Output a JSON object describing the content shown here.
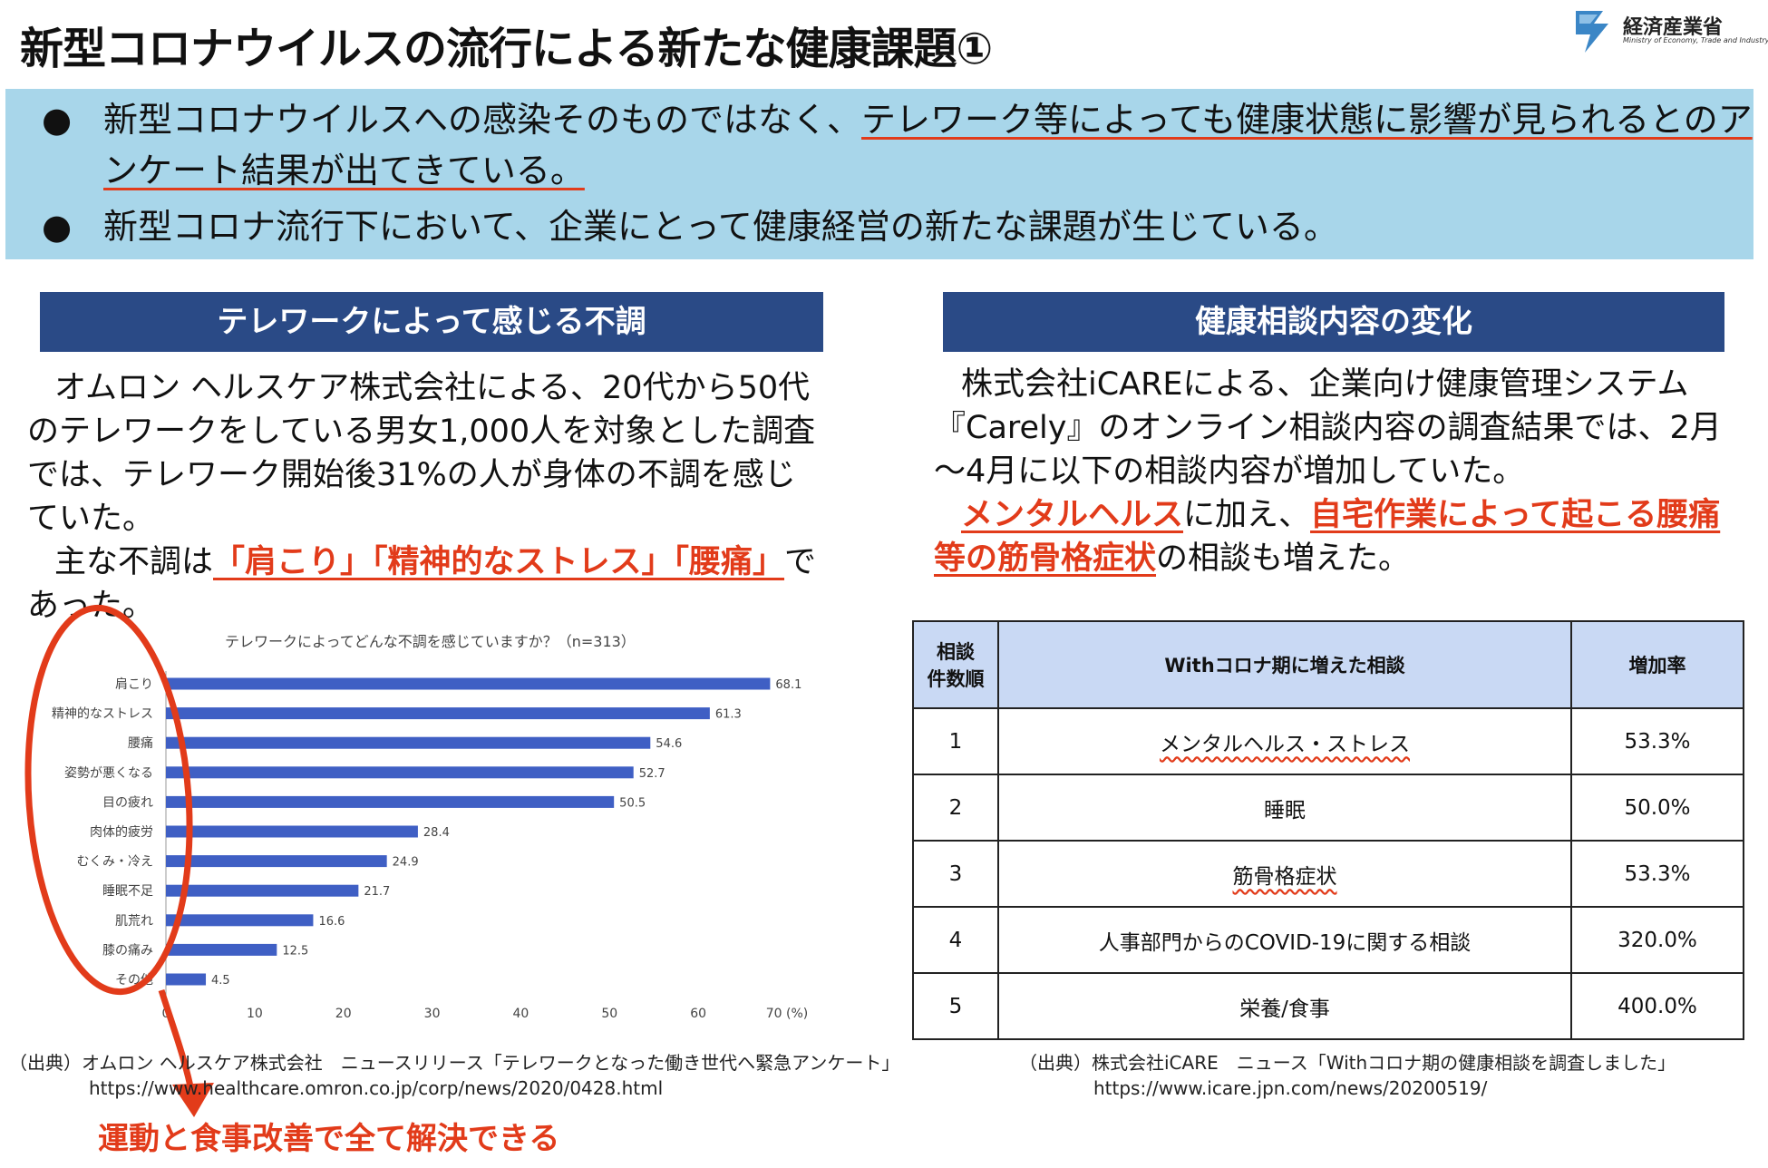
{
  "header": {
    "title": "新型コロナウイルスの流行による新たな健康課題①",
    "logo_text": "経済産業省",
    "logo_sub": "Ministry of Economy, Trade and Industry"
  },
  "banner": {
    "bullet1_line1_a": "新型コロナウイルスへの感染そのものではなく、",
    "bullet1_line1_b": "テレワーク等によっても健康状態に影響が見られるとのア",
    "bullet1_line2": "ンケート結果が出てきている。",
    "bullet2": "新型コロナ流行下において、企業にとって健康経営の新たな課題が生じている。"
  },
  "left": {
    "heading": "テレワークによって感じる不調",
    "para1": "オムロン ヘルスケア株式会社による、20代から50代のテレワークをしている男女1,000人を対象とした調査では、テレワーク開始後31%の人が身体の不調を感じていた。",
    "para2_a": "主な不調は",
    "para2_red": "「肩こり」「精神的なストレス」「腰痛」",
    "para2_b": "であった。",
    "source_line1": "（出典）オムロン ヘルスケア株式会社　ニュースリリース「テレワークとなった働き世代へ緊急アンケート」",
    "source_line2": "https://www.healthcare.omron.co.jp/corp/news/2020/0428.html",
    "annotation": "運動と食事改善で全て解決できる"
  },
  "right": {
    "heading": "健康相談内容の変化",
    "para1": "株式会社iCAREによる、企業向け健康管理システム『Carely』のオンライン相談内容の調査結果では、2月～4月に以下の相談内容が増加していた。",
    "para2_red1": "メンタルヘルス",
    "para2_a": "に加え、",
    "para2_red2": "自宅作業によって起こる腰痛等の筋骨格症状",
    "para2_b": "の相談も増えた。",
    "table": {
      "headers": [
        "相談\n件数順",
        "Withコロナ期に増えた相談",
        "増加率"
      ],
      "rows": [
        {
          "rank": "1",
          "item": "メンタルヘルス・ストレス",
          "rate": "53.3%"
        },
        {
          "rank": "2",
          "item": "睡眠",
          "rate": "50.0%"
        },
        {
          "rank": "3",
          "item": "筋骨格症状",
          "rate": "53.3%"
        },
        {
          "rank": "4",
          "item": "人事部門からのCOVID-19に関する相談",
          "rate": "320.0%"
        },
        {
          "rank": "5",
          "item": "栄養/食事",
          "rate": "400.0%"
        }
      ]
    },
    "source_line1": "（出典）株式会社iCARE　ニュース「Withコロナ期の健康相談を調査しました」",
    "source_line2": "https://www.icare.jpn.com/news/20200519/"
  },
  "colors": {
    "banner": "#a8d6ea",
    "heading": "#2a4a86",
    "bar": "#3f5fc4",
    "accent_red": "#e23b1a",
    "table_header": "#c9d9f4"
  },
  "chart_data": {
    "type": "bar",
    "orientation": "horizontal",
    "title": "テレワークによってどんな不調を感じていますか？（n=313）",
    "categories": [
      "肩こり",
      "精神的なストレス",
      "腰痛",
      "姿勢が悪くなる",
      "目の疲れ",
      "肉体的疲労",
      "むくみ・冷え",
      "睡眠不足",
      "肌荒れ",
      "膝の痛み",
      "その他"
    ],
    "values": [
      68.1,
      61.3,
      54.6,
      52.7,
      50.5,
      28.4,
      24.9,
      21.7,
      16.6,
      12.5,
      4.5
    ],
    "xlim": [
      0,
      70
    ],
    "xticks": [
      "0",
      "10",
      "20",
      "30",
      "40",
      "50",
      "60",
      "70 (%)"
    ],
    "grid": false,
    "legend": "none"
  }
}
